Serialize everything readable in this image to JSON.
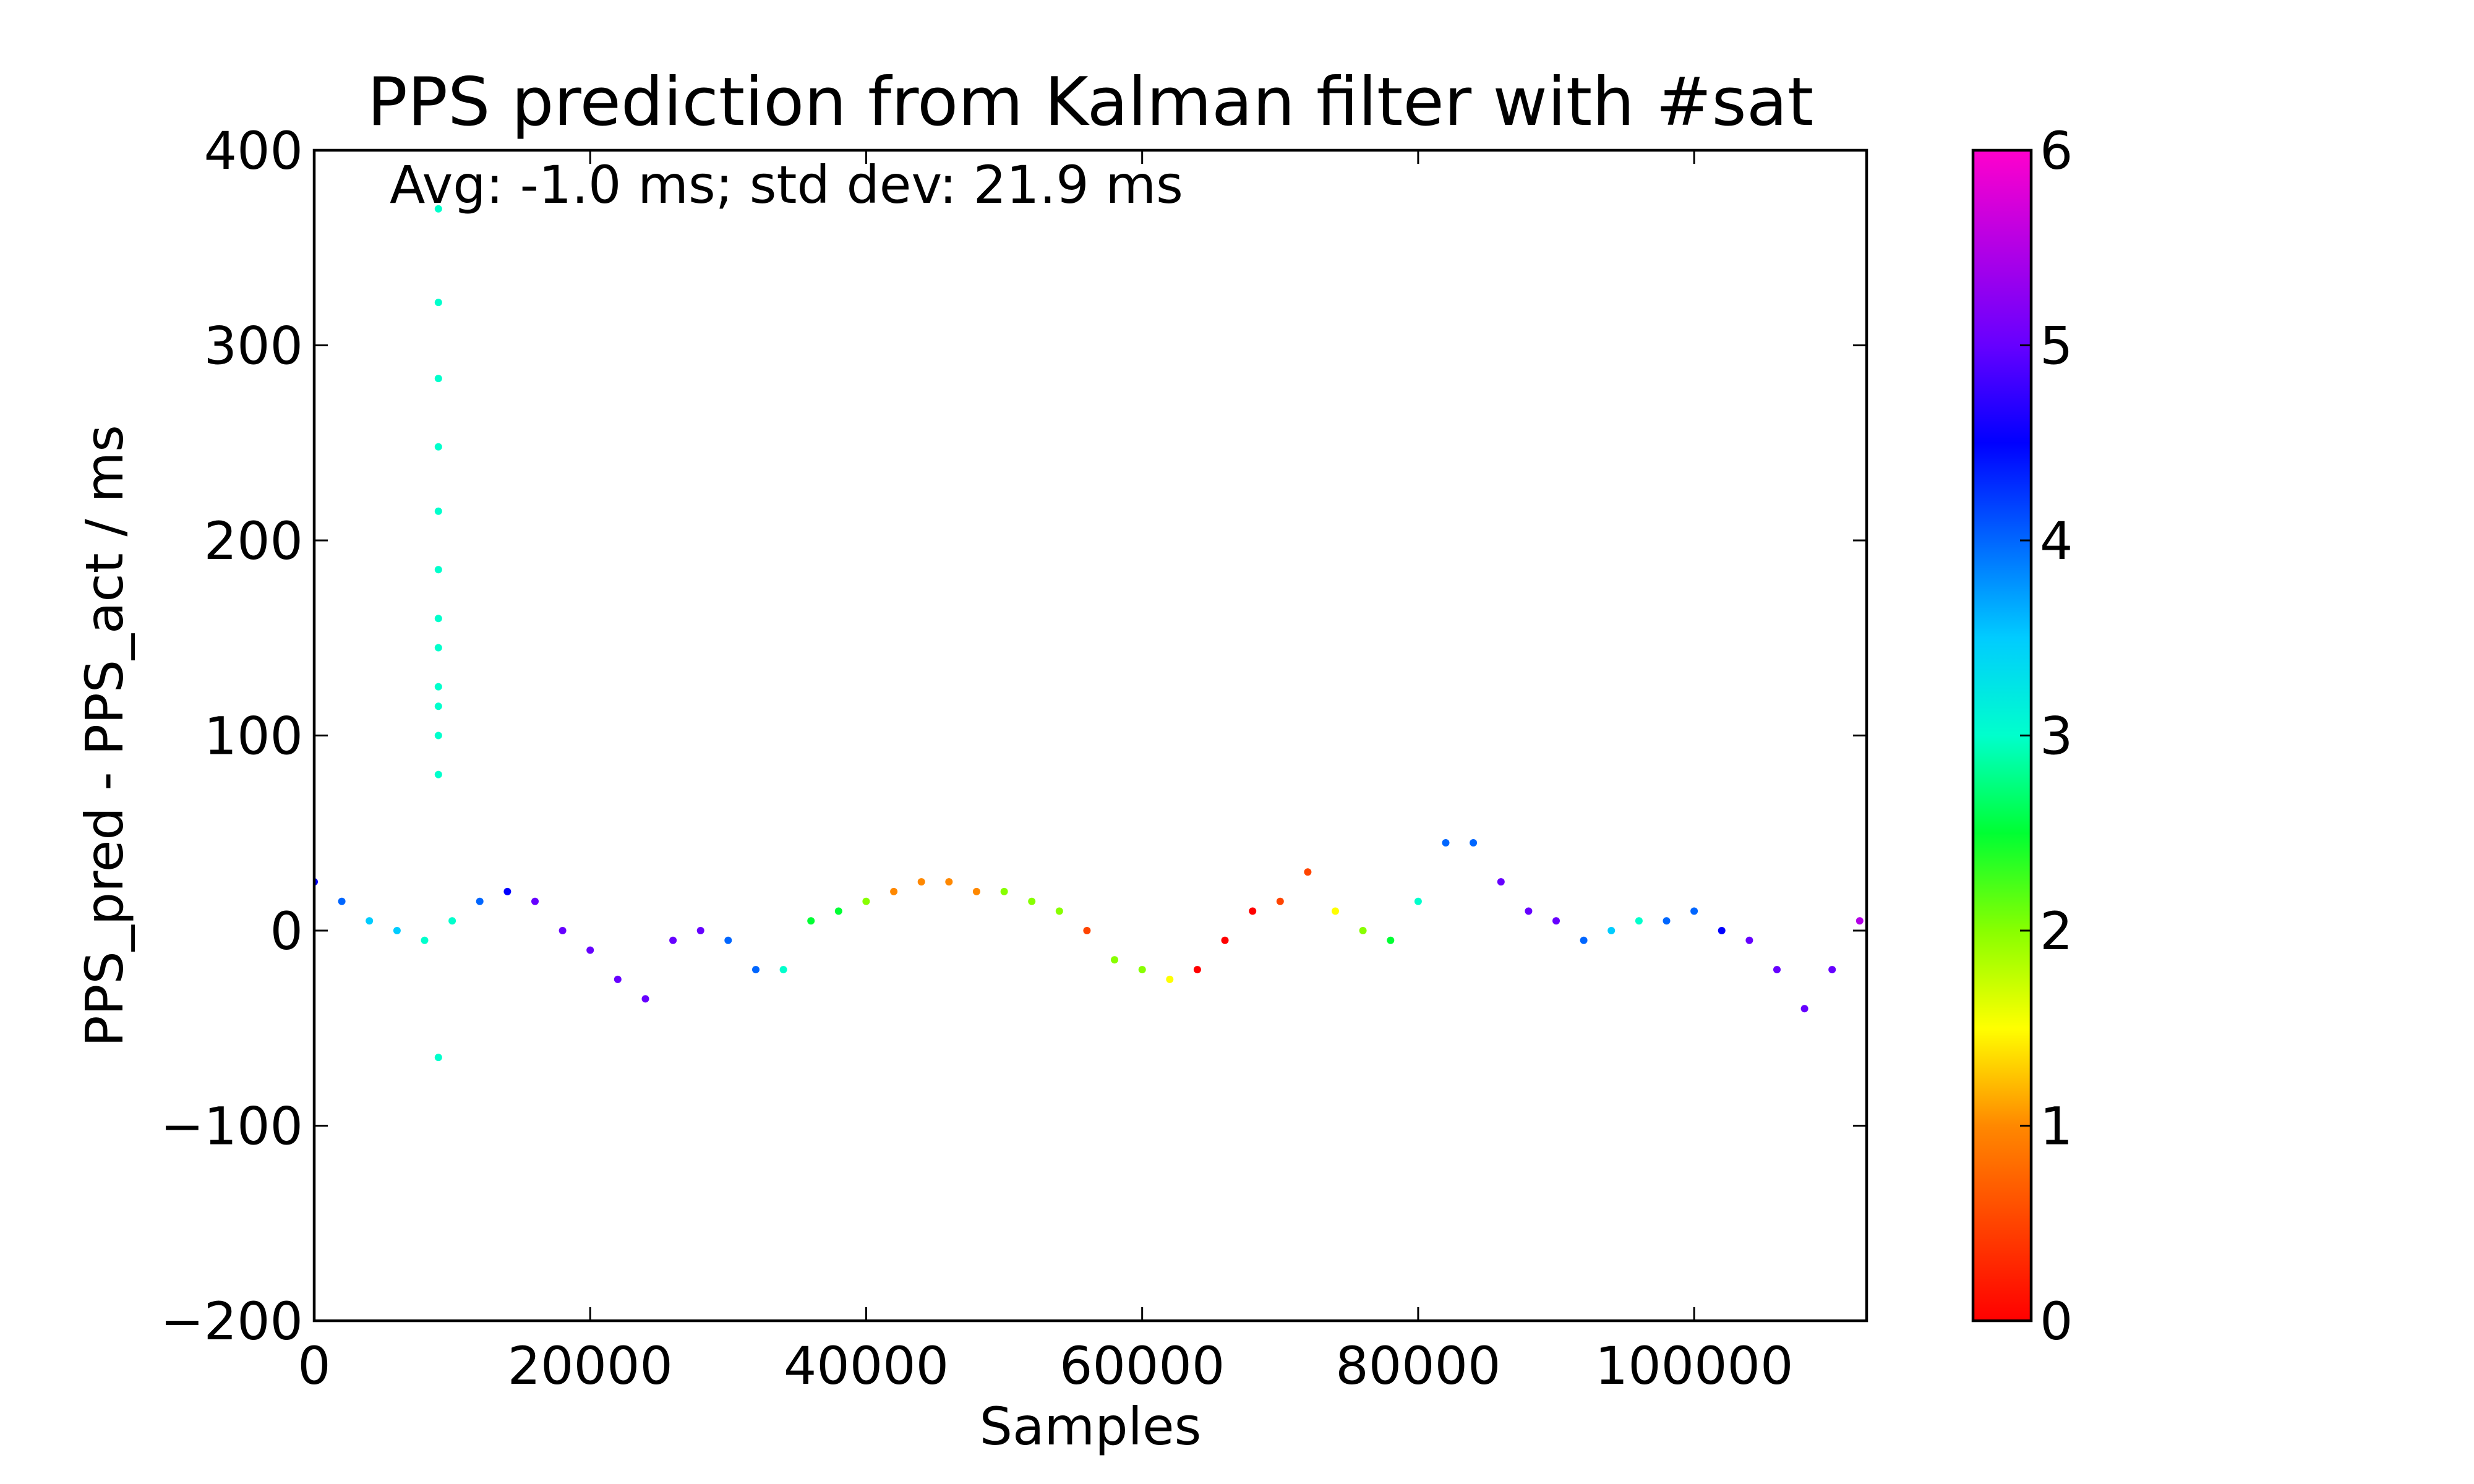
{
  "chart_data": {
    "type": "scatter",
    "title": "PPS prediction from Kalman filter with #sat",
    "annotation": "Avg: -1.0 ms;  std dev: 21.9 ms",
    "xlabel": "Samples",
    "ylabel": "PPS_pred - PPS_act / ms",
    "xlim": [
      0,
      112500
    ],
    "ylim": [
      -200,
      400
    ],
    "x_ticks": [
      0,
      20000,
      40000,
      60000,
      80000,
      100000
    ],
    "x_tick_labels": [
      "0",
      "20000",
      "40000",
      "60000",
      "80000",
      "100000"
    ],
    "y_ticks": [
      -200,
      -100,
      0,
      100,
      200,
      300,
      400
    ],
    "y_tick_labels": [
      "−200",
      "−100",
      "0",
      "100",
      "200",
      "300",
      "400"
    ],
    "colorbar": {
      "colormap": "gist_rainbow (reversed: red at 0, magenta at 6)",
      "range": [
        0,
        6
      ],
      "ticks": [
        0,
        1,
        2,
        3,
        4,
        5,
        6
      ],
      "tick_labels": [
        "0",
        "1",
        "2",
        "3",
        "4",
        "5",
        "6"
      ]
    },
    "series": [
      {
        "x": [
          0,
          2000,
          4000,
          6000,
          8000,
          10000,
          12000,
          14000,
          16000,
          18000,
          20000,
          22000,
          24000,
          26000,
          28000,
          30000,
          32000,
          34000,
          36000,
          38000,
          40000,
          42000,
          44000,
          46000,
          48000,
          50000,
          52000,
          54000,
          56000,
          58000,
          60000,
          62000,
          64000,
          66000,
          68000,
          70000,
          72000,
          74000,
          76000,
          78000,
          80000,
          82000,
          84000,
          86000,
          88000,
          90000,
          92000,
          94000,
          96000,
          98000,
          100000,
          102000,
          104000,
          106000,
          108000,
          110000,
          112000
        ],
        "y": [
          25,
          15,
          5,
          0,
          -5,
          5,
          15,
          20,
          15,
          0,
          -10,
          -25,
          -35,
          -5,
          0,
          -5,
          -20,
          -20,
          5,
          10,
          15,
          20,
          25,
          25,
          20,
          20,
          15,
          10,
          0,
          -15,
          -20,
          -25,
          -20,
          -5,
          10,
          15,
          30,
          10,
          0,
          -5,
          15,
          45,
          45,
          25,
          10,
          5,
          -5,
          0,
          5,
          5,
          10,
          0,
          -5,
          -20,
          -40,
          -20,
          5
        ],
        "color_value": [
          4.5,
          4.0,
          3.5,
          3.5,
          3.0,
          3.0,
          4.0,
          4.5,
          5.0,
          5.0,
          5.0,
          5.0,
          5.0,
          5.0,
          5.0,
          4.0,
          4.0,
          3.0,
          2.5,
          2.5,
          2.0,
          1.0,
          1.0,
          1.0,
          1.0,
          2.0,
          2.0,
          2.0,
          0.5,
          2.0,
          2.0,
          1.5,
          0.0,
          0.0,
          0.0,
          0.5,
          0.5,
          1.5,
          2.0,
          2.5,
          3.0,
          4.0,
          4.0,
          5.0,
          5.0,
          5.0,
          4.0,
          3.5,
          3.0,
          4.0,
          4.0,
          4.5,
          5.0,
          5.0,
          5.0,
          5.0,
          5.5
        ]
      },
      {
        "name": "",
        "x": [
          9000,
          9000,
          9000,
          9000,
          9000,
          9000,
          9000,
          9000,
          9000,
          9000,
          9000,
          9000,
          9000
        ],
        "y": [
          370,
          322,
          283,
          248,
          215,
          185,
          160,
          145,
          125,
          115,
          100,
          80,
          -65
        ],
        "color_value": [
          3.0,
          3.0,
          3.0,
          3.0,
          3.0,
          3.0,
          3.0,
          3.0,
          3.0,
          3.0,
          3.0,
          3.0,
          3.0
        ]
      }
    ]
  }
}
